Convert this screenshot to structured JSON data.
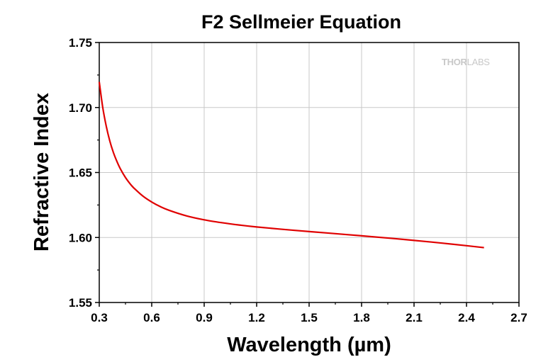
{
  "chart_data": {
    "type": "line",
    "title": "F2 Sellmeier Equation",
    "xlabel": "Wavelength (µm)",
    "ylabel": "Refractive Index",
    "xlim": [
      0.3,
      2.7
    ],
    "ylim": [
      1.55,
      1.75
    ],
    "x_ticks": [
      "0.3",
      "0.6",
      "0.9",
      "1.2",
      "1.5",
      "1.8",
      "2.1",
      "2.4",
      "2.7"
    ],
    "y_ticks": [
      "1.55",
      "1.60",
      "1.65",
      "1.70",
      "1.75"
    ],
    "grid": true,
    "legend": "none",
    "series": [
      {
        "color": "#e00000",
        "x": [
          0.3,
          0.32,
          0.34,
          0.36,
          0.38,
          0.4,
          0.42,
          0.45,
          0.48,
          0.5,
          0.55,
          0.6,
          0.65,
          0.7,
          0.8,
          0.9,
          1.0,
          1.1,
          1.2,
          1.4,
          1.6,
          1.8,
          2.0,
          2.2,
          2.4,
          2.5
        ],
        "y": [
          1.7197,
          1.7,
          1.6856,
          1.6744,
          1.6657,
          1.6588,
          1.653,
          1.6461,
          1.6407,
          1.6378,
          1.6318,
          1.6273,
          1.6237,
          1.6209,
          1.6166,
          1.6136,
          1.6114,
          1.6096,
          1.6081,
          1.6057,
          1.6035,
          1.6013,
          1.599,
          1.5965,
          1.5937,
          1.5922
        ]
      }
    ]
  },
  "watermark": {
    "text_thor": "THOR",
    "text_labs": "LABS"
  }
}
